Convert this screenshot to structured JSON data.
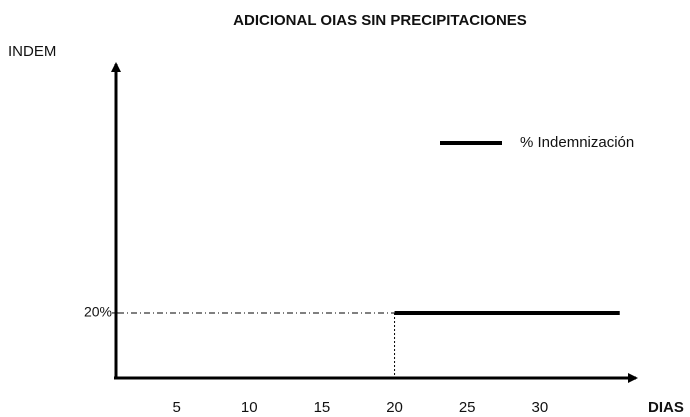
{
  "chart_data": {
    "type": "line",
    "title": "ADICIONAL OIAS SIN PRECIPITACIONES",
    "ylabel": "INDEM",
    "xlabel": "DIAS",
    "x": [
      20,
      35.5
    ],
    "series": [
      {
        "name": "% Indemnización",
        "color": "#000000",
        "values": [
          20,
          20
        ]
      }
    ],
    "xlim": [
      0,
      36
    ],
    "xticks": [
      5,
      10,
      15,
      20,
      25,
      30
    ],
    "ylim": [
      0,
      95
    ],
    "yticks": [
      {
        "value": 20,
        "label": "20%"
      }
    ],
    "legend": "upper right"
  }
}
